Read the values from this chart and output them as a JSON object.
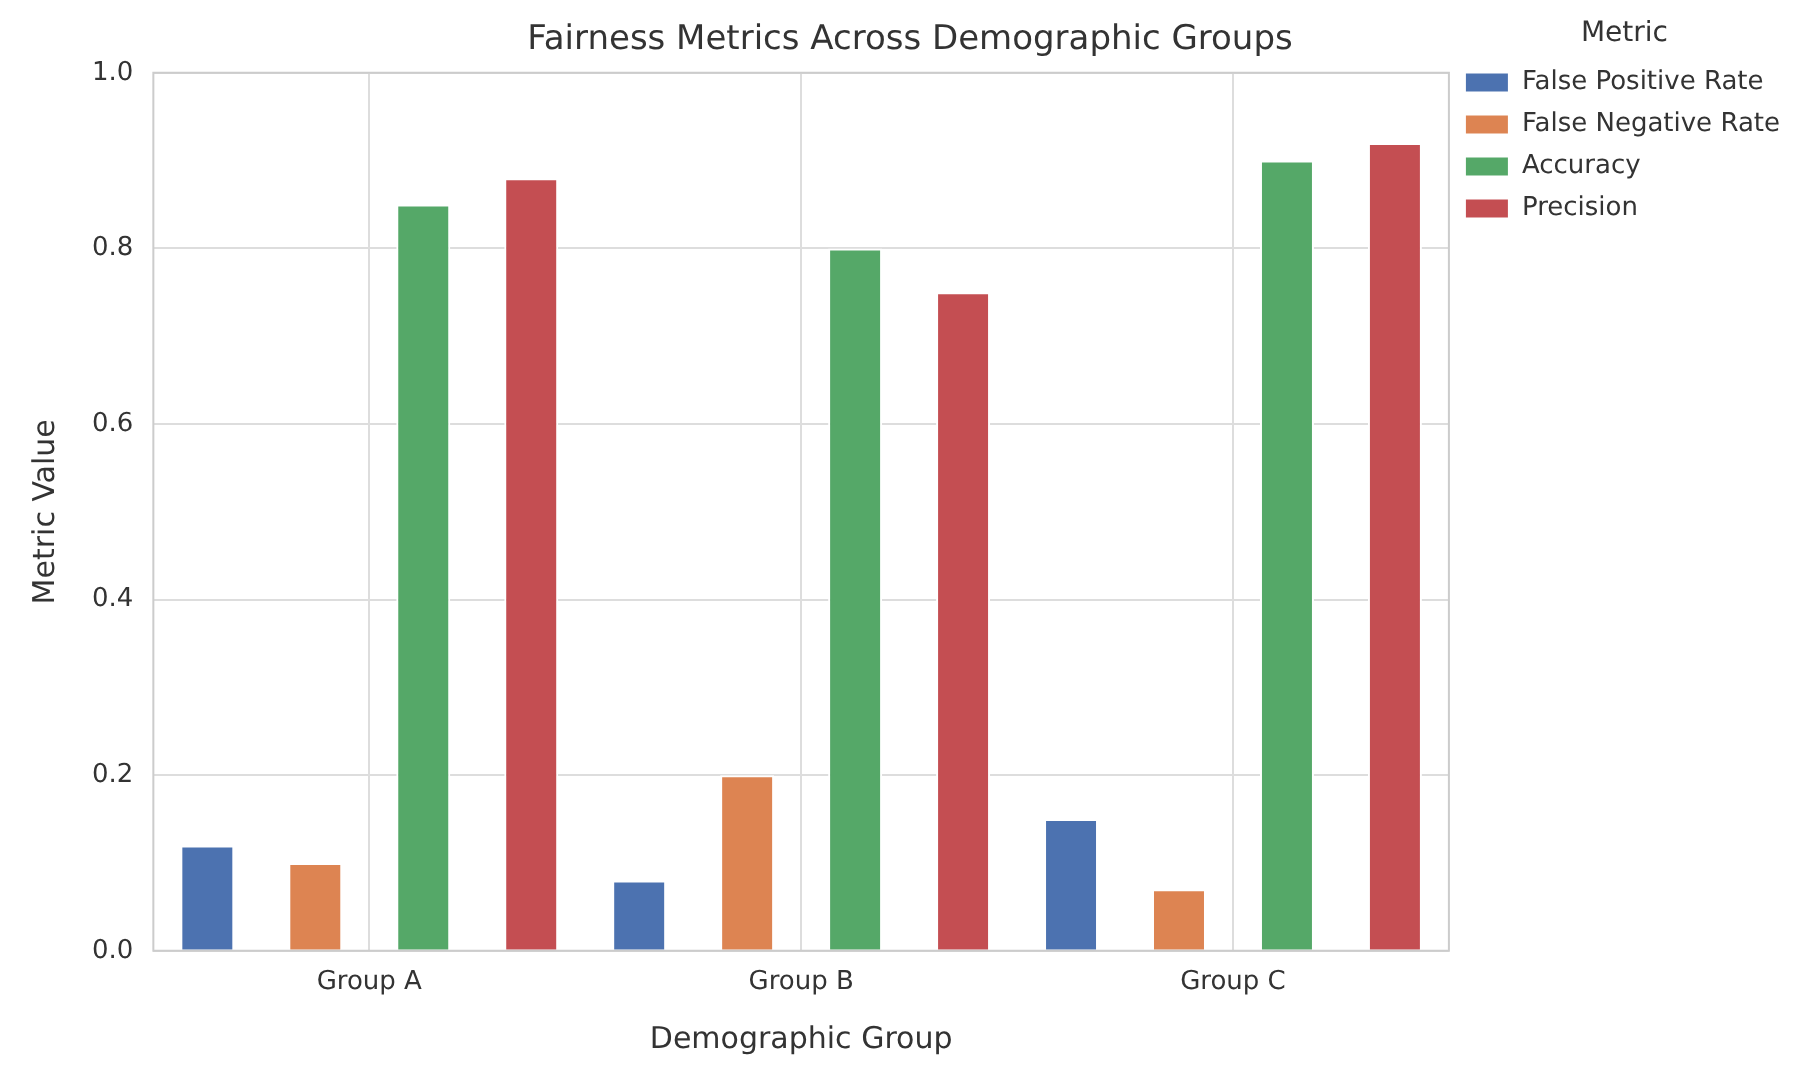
{
  "chart_data": {
    "type": "bar",
    "title": "Fairness Metrics Across Demographic Groups",
    "xlabel": "Demographic Group",
    "ylabel": "Metric Value",
    "legend_title": "Metric",
    "categories": [
      "Group A",
      "Group B",
      "Group C"
    ],
    "series": [
      {
        "name": "False Positive Rate",
        "color": "#4c72b0",
        "values": [
          0.12,
          0.08,
          0.15
        ]
      },
      {
        "name": "False Negative Rate",
        "color": "#dd8452",
        "values": [
          0.1,
          0.2,
          0.07
        ]
      },
      {
        "name": "Accuracy",
        "color": "#55a868",
        "values": [
          0.85,
          0.8,
          0.9
        ]
      },
      {
        "name": "Precision",
        "color": "#c44e52",
        "values": [
          0.88,
          0.75,
          0.92
        ]
      }
    ],
    "ylim": [
      0,
      1
    ],
    "yticks": [
      {
        "value": 0,
        "label": "0.0"
      },
      {
        "value": 0.2,
        "label": "0.2"
      },
      {
        "value": 0.4,
        "label": "0.4"
      },
      {
        "value": 0.6,
        "label": "0.6"
      },
      {
        "value": 0.8,
        "label": "0.8"
      },
      {
        "value": 1,
        "label": "1.0"
      }
    ],
    "grid": true,
    "legend": "top right"
  }
}
